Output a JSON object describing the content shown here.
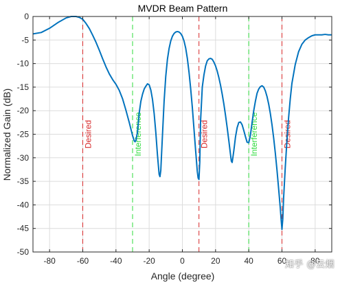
{
  "chart_data": {
    "type": "line",
    "title": "MVDR Beam Pattern",
    "xlabel": "Angle (degree)",
    "ylabel": "Normalized Gain (dB)",
    "xlim": [
      -90,
      90
    ],
    "ylim": [
      -50,
      0
    ],
    "xticks": [
      -80,
      -60,
      -40,
      -20,
      0,
      20,
      40,
      60,
      80
    ],
    "yticks": [
      0,
      -5,
      -10,
      -15,
      -20,
      -25,
      -30,
      -35,
      -40,
      -45,
      -50
    ],
    "grid": true,
    "line_color": "#0072BD",
    "series": [
      {
        "x": [
          -90,
          -85,
          -80,
          -75,
          -70,
          -67,
          -64,
          -62,
          -60,
          -58,
          -56,
          -54,
          -52,
          -50,
          -48,
          -46,
          -44,
          -42,
          -40,
          -38,
          -36,
          -34,
          -32,
          -30,
          -29,
          -28.5,
          -28,
          -27,
          -26,
          -25,
          -24,
          -23,
          -22,
          -21,
          -20,
          -19,
          -18,
          -17,
          -16,
          -15,
          -14,
          -13.5,
          -13,
          -12,
          -11,
          -10,
          -9,
          -8,
          -7,
          -6,
          -5,
          -4,
          -3,
          -2,
          -1,
          0,
          1,
          2,
          3,
          4,
          5,
          6,
          7,
          8,
          9,
          9.5,
          10,
          10.5,
          11,
          12,
          13,
          14,
          15,
          16,
          17,
          18,
          19,
          20,
          21,
          22,
          23,
          24,
          25,
          26,
          27,
          28,
          29,
          29.5,
          30,
          31,
          32,
          33,
          34,
          35,
          36,
          37,
          38,
          39,
          40,
          41,
          42,
          43,
          44,
          45,
          46,
          47,
          48,
          49,
          50,
          51,
          52,
          53,
          54,
          55,
          56,
          57,
          58,
          59,
          59.5,
          60,
          60.5,
          61,
          62,
          63,
          64,
          65,
          66,
          68,
          70,
          72,
          74,
          76,
          78,
          80,
          82,
          84,
          86,
          88,
          90
        ],
        "y": [
          -3.7,
          -3.4,
          -2.5,
          -1.3,
          -0.3,
          0,
          0,
          -0.2,
          -0.6,
          -1.5,
          -2.6,
          -4,
          -5.5,
          -7.2,
          -9,
          -10.7,
          -12.2,
          -13.4,
          -14.4,
          -15.7,
          -17.5,
          -19.9,
          -22.5,
          -25.3,
          -26.4,
          -26.6,
          -26.3,
          -24.5,
          -20.5,
          -18,
          -16.5,
          -15.4,
          -14.8,
          -14.3,
          -14.5,
          -15.6,
          -17.6,
          -20.6,
          -24.6,
          -29.4,
          -33.5,
          -34,
          -32.7,
          -25.3,
          -18,
          -12.7,
          -9.1,
          -6.8,
          -5.2,
          -4.2,
          -3.6,
          -3.3,
          -3.2,
          -3.3,
          -3.6,
          -4.2,
          -5.2,
          -6.7,
          -8.9,
          -11.8,
          -15.3,
          -19.3,
          -23.9,
          -28.5,
          -32.9,
          -34.3,
          -34.6,
          -30.8,
          -22,
          -15,
          -12.4,
          -10.5,
          -9.4,
          -9,
          -8.9,
          -9.1,
          -9.7,
          -10.5,
          -11.6,
          -13,
          -14.6,
          -16.5,
          -18.6,
          -21,
          -23.6,
          -26.4,
          -29.3,
          -30.7,
          -31,
          -28.5,
          -25.6,
          -23.6,
          -22.5,
          -22.4,
          -23,
          -24.2,
          -25.5,
          -26.7,
          -26.8,
          -25.2,
          -22.5,
          -20,
          -18,
          -16.3,
          -15.4,
          -14.9,
          -14.7,
          -15,
          -15.8,
          -17,
          -18.6,
          -20.6,
          -23,
          -25.8,
          -29,
          -32.6,
          -36.6,
          -40.7,
          -43.1,
          -45.2,
          -43,
          -38.5,
          -32,
          -26.3,
          -21.5,
          -17.5,
          -14.2,
          -10.2,
          -7.5,
          -5.9,
          -5,
          -4.5,
          -4.1,
          -3.9,
          -3.9,
          -3.9,
          -3.8,
          -3.9,
          -3.9
        ]
      }
    ],
    "markers": [
      {
        "x": -60,
        "label": "Desired",
        "color": "#D62728"
      },
      {
        "x": -30,
        "label": "Interference",
        "color": "#2CDB3A"
      },
      {
        "x": 10,
        "label": "Desired",
        "color": "#D62728"
      },
      {
        "x": 40,
        "label": "Interference",
        "color": "#2CDB3A"
      },
      {
        "x": 60,
        "label": "Desired",
        "color": "#D62728"
      }
    ]
  },
  "watermark": "知乎 @云烟"
}
